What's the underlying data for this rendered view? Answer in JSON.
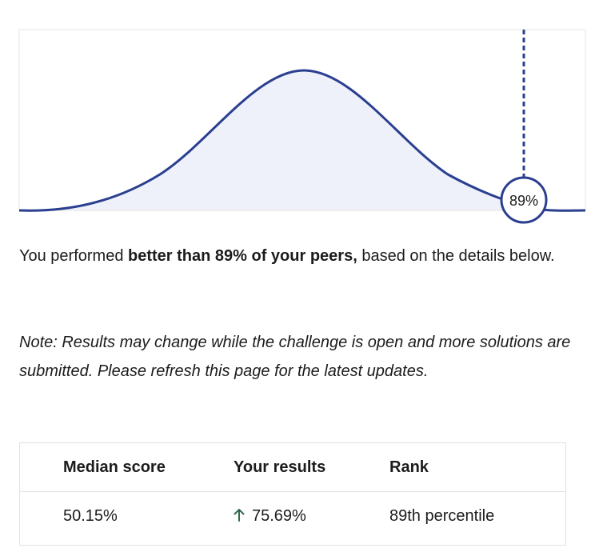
{
  "chart": {
    "marker_label": "89%",
    "colors": {
      "curve": "#2a3f8f",
      "fill": "#eef0fa",
      "border": "#e6e6e6"
    }
  },
  "summary": {
    "prefix": "You performed ",
    "bold": "better than 89% of your peers,",
    "suffix": " based on the details below."
  },
  "note": {
    "text": "Note: Results may change while the challenge is open and more solutions are submitted. Please refresh this page for the latest updates."
  },
  "results_table": {
    "headers": [
      "Median score",
      "Your results",
      "Rank"
    ],
    "median_score": "50.15%",
    "your_result": "75.69%",
    "rank": "89th percentile",
    "trend_icon": "arrow-up-icon",
    "trend_color": "#2e6b4a"
  }
}
